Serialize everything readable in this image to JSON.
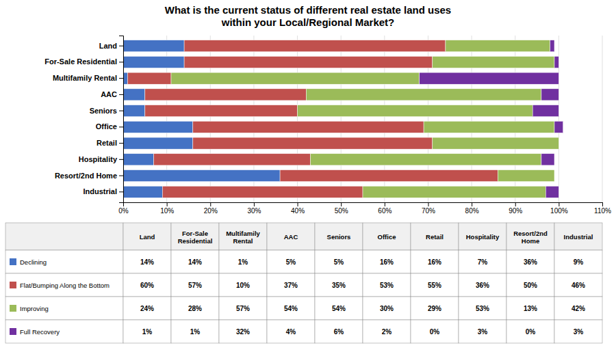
{
  "chart_data": {
    "type": "bar",
    "orientation": "horizontal",
    "stacked": true,
    "title": "What is the current status of different real estate land uses\nwithin your Local/Regional Market?",
    "categories": [
      "Land",
      "For-Sale Residential",
      "Multifamily Rental",
      "AAC",
      "Seniors",
      "Office",
      "Retail",
      "Hospitality",
      "Resort/2nd Home",
      "Industrial"
    ],
    "table_header": [
      "Land",
      "For-Sale\nResidential",
      "Multifamily\nRental",
      "AAC",
      "Seniors",
      "Office",
      "Retail",
      "Hospitality",
      "Resort/2nd\nHome",
      "Industrial"
    ],
    "series": [
      {
        "name": "Declining",
        "color": "#4472C4",
        "values": [
          14,
          14,
          1,
          5,
          5,
          16,
          16,
          7,
          36,
          9
        ],
        "value_labels": [
          "14%",
          "14%",
          "1%",
          "5%",
          "5%",
          "16%",
          "16%",
          "7%",
          "36%",
          "9%"
        ]
      },
      {
        "name": "Flat/Bumping Along the Bottom",
        "color": "#C0504D",
        "values": [
          60,
          57,
          10,
          37,
          35,
          53,
          55,
          36,
          50,
          46
        ],
        "value_labels": [
          "60%",
          "57%",
          "10%",
          "37%",
          "35%",
          "53%",
          "55%",
          "36%",
          "50%",
          "46%"
        ]
      },
      {
        "name": "Improving",
        "color": "#9BBB59",
        "values": [
          24,
          28,
          57,
          54,
          54,
          30,
          29,
          53,
          13,
          42
        ],
        "value_labels": [
          "24%",
          "28%",
          "57%",
          "54%",
          "54%",
          "30%",
          "29%",
          "53%",
          "13%",
          "42%"
        ]
      },
      {
        "name": "Full Recovery",
        "color": "#7030A0",
        "values": [
          1,
          1,
          32,
          4,
          6,
          2,
          0,
          3,
          0,
          3
        ],
        "value_labels": [
          "1%",
          "1%",
          "32%",
          "4%",
          "6%",
          "2%",
          "0%",
          "3%",
          "0%",
          "3%"
        ]
      }
    ],
    "xlim": [
      0,
      110
    ],
    "xticks": [
      {
        "value": 0,
        "label": "0%"
      },
      {
        "value": 10,
        "label": "10%"
      },
      {
        "value": 20,
        "label": "20%"
      },
      {
        "value": 30,
        "label": "30%"
      },
      {
        "value": 40,
        "label": "40%"
      },
      {
        "value": 50,
        "label": "50%"
      },
      {
        "value": 60,
        "label": "60%"
      },
      {
        "value": 70,
        "label": "70%"
      },
      {
        "value": 80,
        "label": "80%"
      },
      {
        "value": 90,
        "label": "90%"
      },
      {
        "value": 100,
        "label": "100%"
      },
      {
        "value": 110,
        "label": "110%"
      }
    ],
    "grid": true
  }
}
